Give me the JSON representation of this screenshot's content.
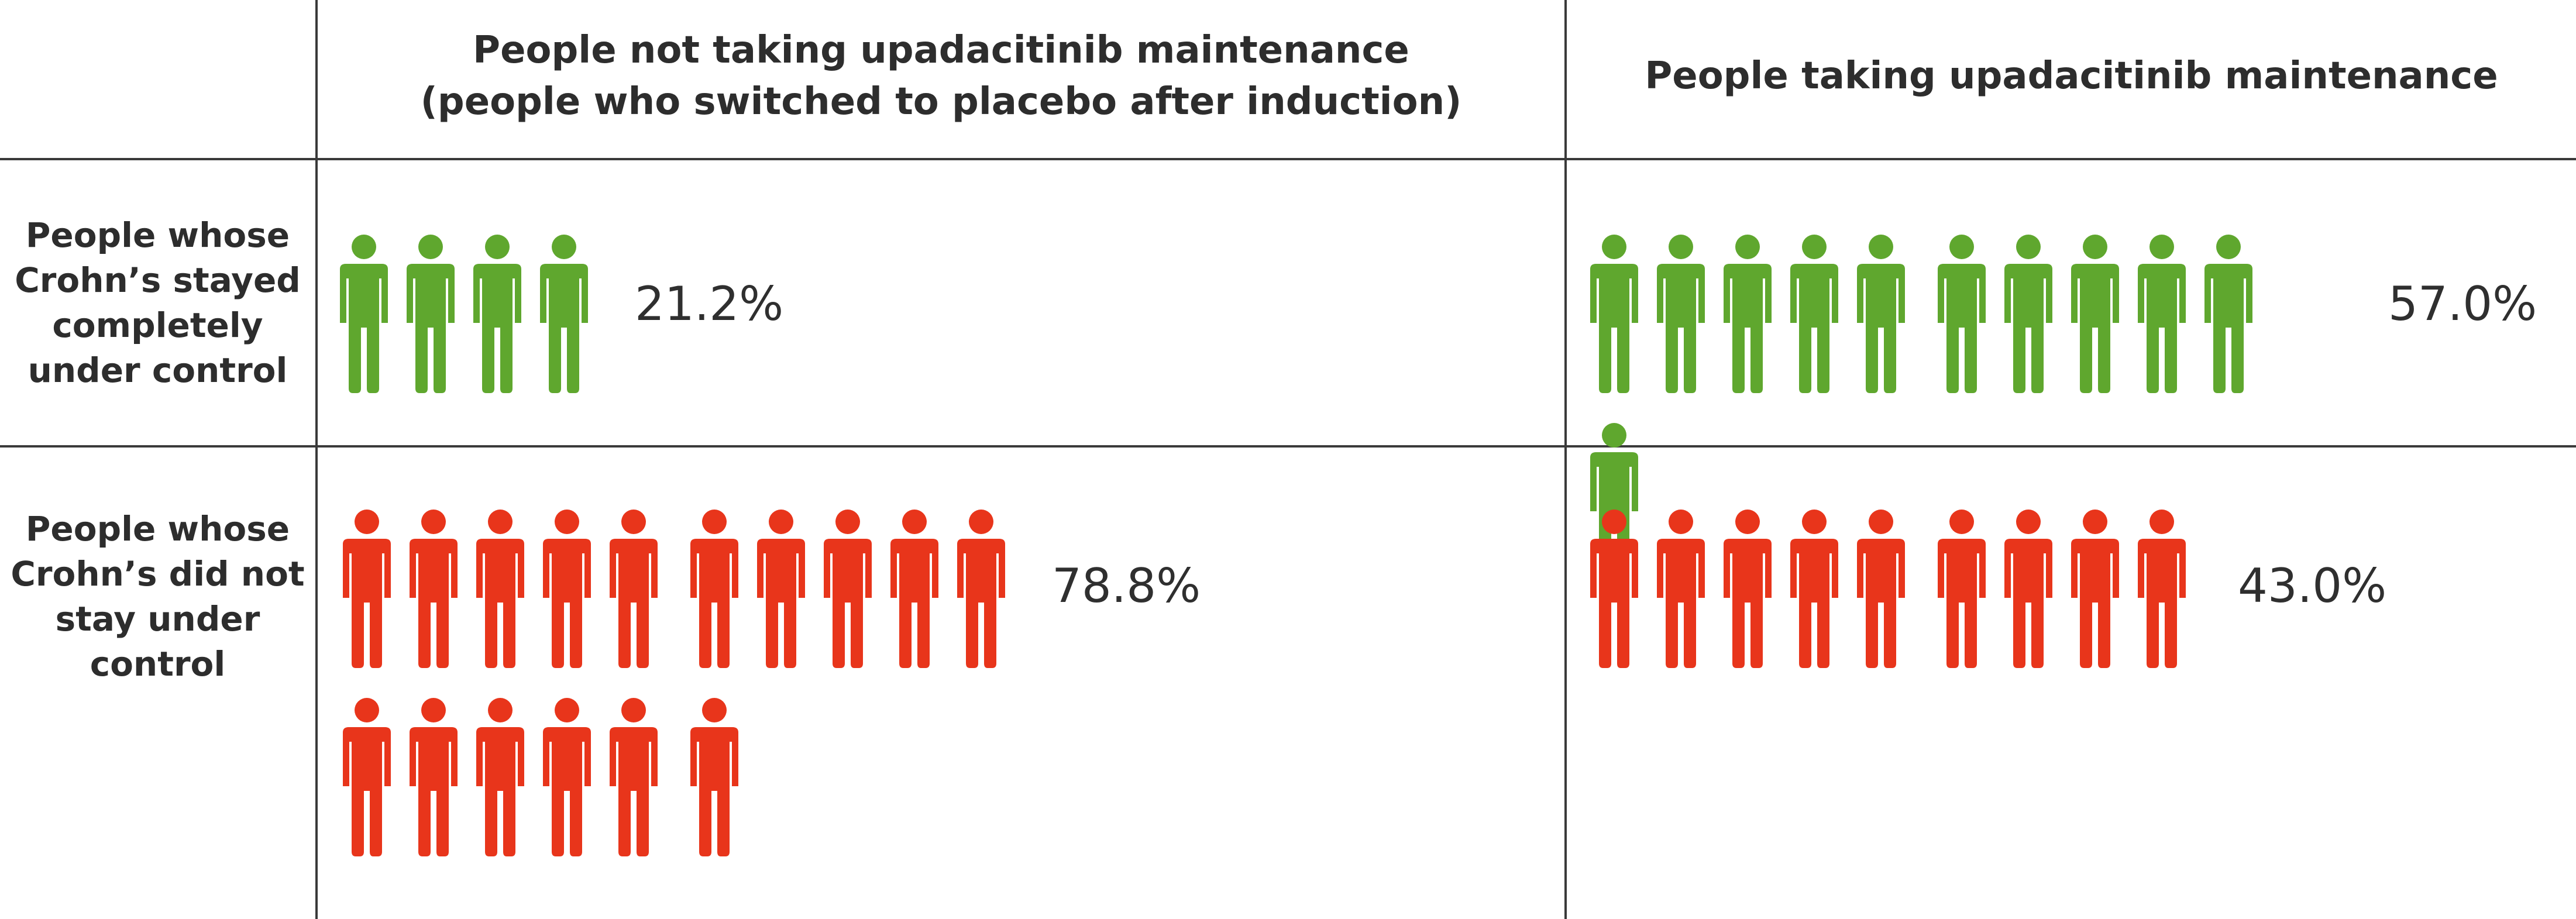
{
  "colors": {
    "controlled": "#5fa72e",
    "not_controlled": "#e8351b",
    "line": "#3a3a3a"
  },
  "column_headers": [
    {
      "line1": "People not taking upadacitinib maintenance",
      "line2": "(people who switched to placebo after induction)"
    },
    {
      "line1": "People taking upadacitinib maintenance",
      "line2": ""
    }
  ],
  "row_headers": [
    {
      "lines": [
        "People whose",
        "Crohn’s stayed",
        "completely",
        "under control"
      ]
    },
    {
      "lines": [
        "People whose",
        "Crohn’s did not",
        "stay under",
        "control"
      ]
    }
  ],
  "chart_data": {
    "type": "table",
    "icon": "person-icon",
    "columns": [
      "People not taking upadacitinib maintenance (people who switched to placebo after induction)",
      "People taking upadacitinib maintenance"
    ],
    "rows": [
      "People whose Crohn’s stayed completely under control",
      "People whose Crohn’s did not stay under control"
    ],
    "cells": [
      {
        "row": 0,
        "col": 0,
        "icon_count": 4,
        "percent": 21.2,
        "label": "21.2%",
        "color": "#5fa72e"
      },
      {
        "row": 0,
        "col": 1,
        "icon_count": 11,
        "percent": 57.0,
        "label": "57.0%",
        "color": "#5fa72e"
      },
      {
        "row": 1,
        "col": 0,
        "icon_count": 16,
        "percent": 78.8,
        "label": "78.8%",
        "color": "#e8351b"
      },
      {
        "row": 1,
        "col": 1,
        "icon_count": 9,
        "percent": 43.0,
        "label": "43.0%",
        "color": "#e8351b"
      }
    ]
  }
}
